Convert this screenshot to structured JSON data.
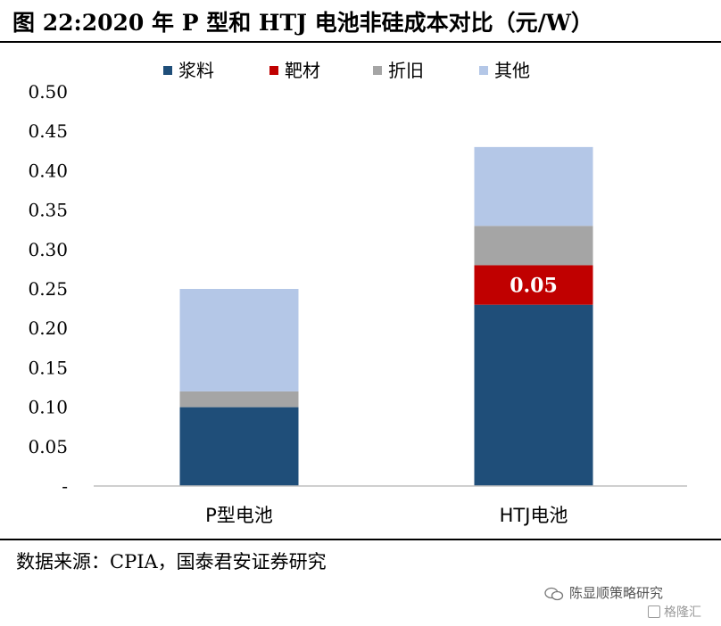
{
  "title": "图 22:2020 年 P 型和 HTJ 电池非硅成本对比（元/W）",
  "source": "数据来源：CPIA，国泰君安证券研究",
  "brand": "陈显顺策略研究",
  "watermark": "格隆汇",
  "chart_data": {
    "type": "bar",
    "stacked": true,
    "title": "图 22:2020 年 P 型和 HTJ 电池非硅成本对比（元/W）",
    "xlabel": "",
    "ylabel": "",
    "categories": [
      "P型电池",
      "HTJ电池"
    ],
    "series": [
      {
        "name": "浆料",
        "color": "#1F4E79",
        "values": [
          0.1,
          0.23
        ]
      },
      {
        "name": "靶材",
        "color": "#C00000",
        "values": [
          0.0,
          0.05
        ]
      },
      {
        "name": "折旧",
        "color": "#A5A5A5",
        "values": [
          0.02,
          0.05
        ]
      },
      {
        "name": "其他",
        "color": "#B4C7E7",
        "values": [
          0.13,
          0.1
        ]
      }
    ],
    "data_labels": [
      {
        "series": "靶材",
        "category": "HTJ电池",
        "text": "0.05"
      }
    ],
    "ylim": [
      0,
      0.5
    ],
    "yticks": [
      "-",
      "0.05",
      "0.10",
      "0.15",
      "0.20",
      "0.25",
      "0.30",
      "0.35",
      "0.40",
      "0.45",
      "0.50"
    ],
    "legend_position": "top",
    "grid": false
  }
}
